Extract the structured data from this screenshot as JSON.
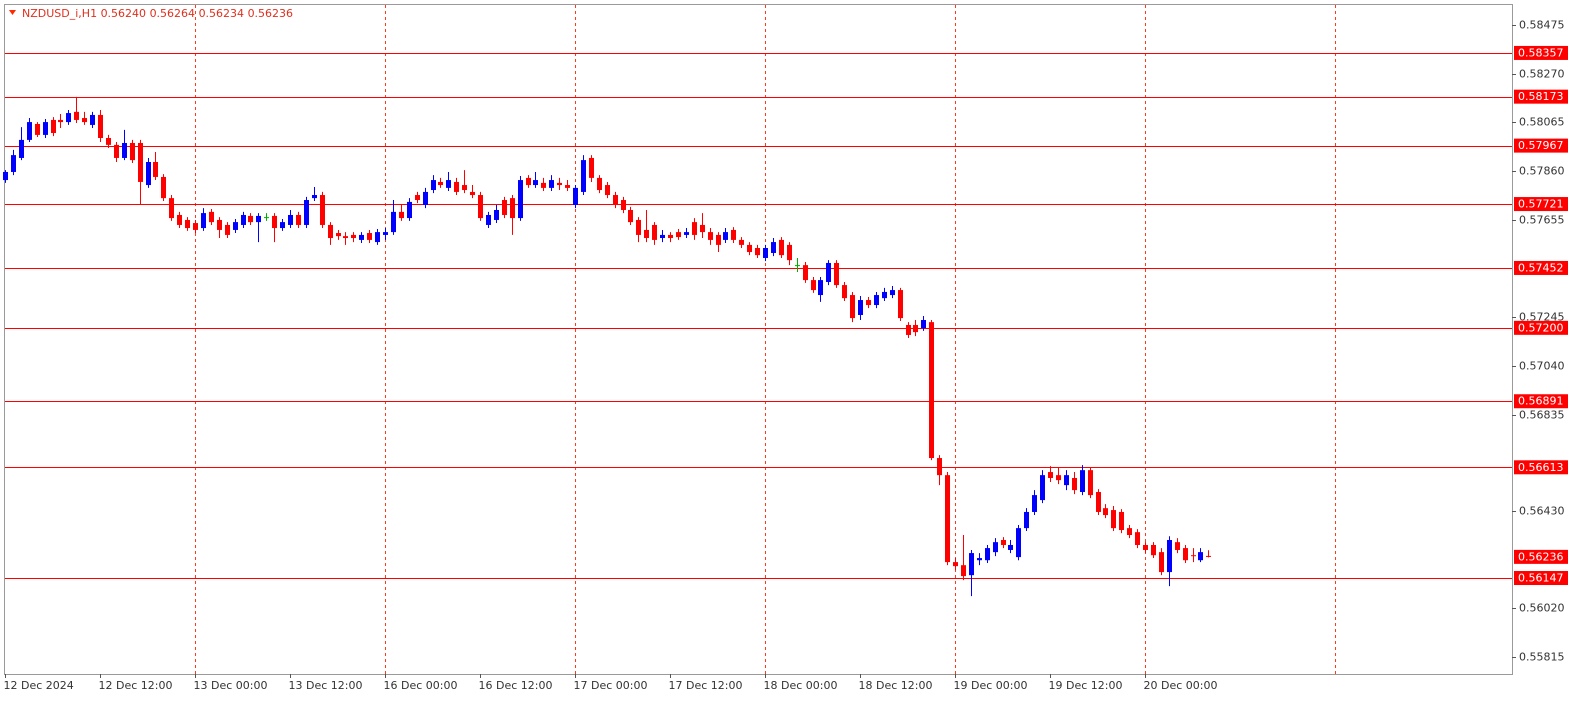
{
  "chart_data": {
    "type": "candlestick",
    "symbol": "NZDUSD_i,H1",
    "ohlc_text": [
      "0.56240",
      "0.56264",
      "0.56234",
      "0.56236"
    ],
    "up_color": "#0000ff",
    "down_color": "#ff0000",
    "doji_color": "#00b000",
    "grid_color": "#ff3b1f",
    "level_color": "#ff0000",
    "ylim": [
      0.55743,
      0.58563
    ],
    "yticks": [
      0.58475,
      {
        "value": 0.5827,
        "label": "0.58270"
      },
      0.58065,
      {
        "value": 0.5786,
        "label": "0.57860"
      },
      0.57655,
      0.57245,
      {
        "value": 0.5704,
        "label": "0.57040"
      },
      0.56835,
      {
        "value": 0.5643,
        "label": "0.56430"
      },
      {
        "value": 0.5602,
        "label": "0.56020"
      },
      0.55815
    ],
    "levels": [
      {
        "value": 0.58357,
        "label": "0.58357"
      },
      {
        "value": 0.58173,
        "label": "0.58173"
      },
      {
        "value": 0.57967,
        "label": "0.57967"
      },
      {
        "value": 0.57721,
        "label": "0.57721"
      },
      {
        "value": 0.57452,
        "label": "0.57452"
      },
      {
        "value": 0.572,
        "label": "0.57200"
      },
      {
        "value": 0.56891,
        "label": "0.56891"
      },
      {
        "value": 0.56613,
        "label": "0.56613"
      },
      {
        "value": 0.56147,
        "label": "0.56147"
      }
    ],
    "current_price": {
      "value": 0.56236,
      "label": "0.56236"
    },
    "xlim": [
      -0.13,
      190.35
    ],
    "xticks": [
      {
        "value": 0,
        "label": "12 Dec 2024"
      },
      {
        "value": 12,
        "label": "12 Dec 12:00"
      },
      {
        "value": 24,
        "label": "13 Dec 00:00"
      },
      {
        "value": 36,
        "label": "13 Dec 12:00"
      },
      {
        "value": 48,
        "label": "16 Dec 00:00"
      },
      {
        "value": 60,
        "label": "16 Dec 12:00"
      },
      {
        "value": 72,
        "label": "17 Dec 00:00"
      },
      {
        "value": 84,
        "label": "17 Dec 12:00"
      },
      {
        "value": 96,
        "label": "18 Dec 00:00"
      },
      {
        "value": 108,
        "label": "18 Dec 12:00"
      },
      {
        "value": 120,
        "label": "19 Dec 00:00"
      },
      {
        "value": 132,
        "label": "19 Dec 12:00"
      },
      {
        "value": 144,
        "label": "20 Dec 00:00"
      }
    ],
    "xgrid": [
      24,
      48,
      72,
      96,
      120,
      144,
      168
    ],
    "open": [
      0.57822,
      0.57856,
      0.57915,
      0.57991,
      0.58058,
      0.58012,
      0.58075,
      0.58075,
      0.58066,
      0.58109,
      0.58083,
      0.58054,
      0.58096,
      0.57999,
      0.5797,
      0.57915,
      0.57978,
      0.57978,
      0.57801,
      0.57898,
      0.57835,
      0.57746,
      0.57675,
      0.57654,
      0.57641,
      0.5762,
      0.57688,
      0.57654,
      0.57633,
      0.57612,
      0.57633,
      0.57671,
      0.57645,
      0.57666,
      0.57671,
      0.5762,
      0.57633,
      0.57675,
      0.57633,
      0.57746,
      0.57759,
      0.57633,
      0.57599,
      0.57586,
      0.57591,
      0.5757,
      0.57599,
      0.57561,
      0.57591,
      0.57603,
      0.57688,
      0.57662,
      0.57759,
      0.57717,
      0.5778,
      0.57814,
      0.57789,
      0.57814,
      0.57801,
      0.57772,
      0.57759,
      0.57633,
      0.57654,
      0.57738,
      0.57746,
      0.57662,
      0.57831,
      0.57801,
      0.5781,
      0.57789,
      0.5781,
      0.57801,
      0.57717,
      0.57772,
      0.57915,
      0.57831,
      0.57801,
      0.57759,
      0.57738,
      0.57696,
      0.57654,
      0.57612,
      0.57633,
      0.57578,
      0.57591,
      0.57603,
      0.57591,
      0.57645,
      0.57633,
      0.57603,
      0.57591,
      0.5757,
      0.57612,
      0.5757,
      0.57549,
      0.57536,
      0.57494,
      0.57515,
      0.5757,
      0.57549,
      0.57464,
      0.57464,
      0.57401,
      0.57338,
      0.57393,
      0.57473,
      0.5738,
      0.57338,
      0.57254,
      0.57317,
      0.57296,
      0.57325,
      0.57338,
      0.57359,
      0.57212,
      0.57212,
      0.57199,
      0.57224,
      0.56652,
      0.5658,
      0.56214,
      0.56201,
      0.56159,
      0.56222,
      0.56222,
      0.56256,
      0.56307,
      0.56265,
      0.56235,
      0.56357,
      0.56425,
      0.56475,
      0.56593,
      0.5658,
      0.56538,
      0.56568,
      0.56509,
      0.56601,
      0.56509,
      0.56441,
      0.56433,
      0.56425,
      0.56357,
      0.5634,
      0.56286,
      0.56286,
      0.56256,
      0.56172,
      0.56298,
      0.56273,
      0.56243,
      0.56222,
      0.5624
    ],
    "high": [
      0.57864,
      0.57949,
      0.58045,
      0.58083,
      0.58066,
      0.58079,
      0.58087,
      0.581,
      0.58117,
      0.58172,
      0.58109,
      0.58109,
      0.58117,
      0.58012,
      0.57982,
      0.58033,
      0.57991,
      0.57991,
      0.57915,
      0.5794,
      0.57847,
      0.57759,
      0.57688,
      0.57666,
      0.57654,
      0.57704,
      0.577,
      0.57666,
      0.57645,
      0.57658,
      0.57688,
      0.57683,
      0.57683,
      0.57683,
      0.57683,
      0.57658,
      0.57696,
      0.57688,
      0.57751,
      0.57793,
      0.57772,
      0.57645,
      0.57612,
      0.57603,
      0.57603,
      0.57603,
      0.57612,
      0.57616,
      0.5762,
      0.57738,
      0.57717,
      0.57746,
      0.57772,
      0.57789,
      0.57843,
      0.57831,
      0.57856,
      0.57831,
      0.57864,
      0.57801,
      0.57772,
      0.57688,
      0.57717,
      0.57751,
      0.57759,
      0.57839,
      0.57843,
      0.57856,
      0.57831,
      0.57843,
      0.57831,
      0.57822,
      0.57801,
      0.57927,
      0.57927,
      0.57843,
      0.57814,
      0.57772,
      0.57751,
      0.57709,
      0.57666,
      0.57696,
      0.57645,
      0.57612,
      0.57603,
      0.57616,
      0.5762,
      0.57662,
      0.57683,
      0.5762,
      0.57603,
      0.5762,
      0.57624,
      0.57582,
      0.57561,
      0.57549,
      0.57549,
      0.57578,
      0.57582,
      0.57561,
      0.57494,
      0.57477,
      0.57414,
      0.57414,
      0.57485,
      0.57485,
      0.57393,
      0.57351,
      0.57334,
      0.5733,
      0.57351,
      0.57368,
      0.57376,
      0.57368,
      0.57224,
      0.57233,
      0.5725,
      0.57233,
      0.56664,
      0.56593,
      0.56231,
      0.56328,
      0.56265,
      0.56252,
      0.56286,
      0.56315,
      0.56319,
      0.56307,
      0.5637,
      0.56441,
      0.56517,
      0.56601,
      0.56618,
      0.5661,
      0.56601,
      0.56593,
      0.56622,
      0.56614,
      0.56521,
      0.56458,
      0.5645,
      0.56437,
      0.5637,
      0.56353,
      0.56298,
      0.56298,
      0.56273,
      0.56323,
      0.56315,
      0.56286,
      0.56273,
      0.56273,
      0.56264
    ],
    "low": [
      0.5781,
      0.57843,
      0.57906,
      0.57982,
      0.58003,
      0.57999,
      0.58007,
      0.58041,
      0.58054,
      0.58062,
      0.58054,
      0.58041,
      0.57982,
      0.57957,
      0.57898,
      0.57906,
      0.57894,
      0.57717,
      0.57789,
      0.57822,
      0.57734,
      0.5765,
      0.5762,
      0.57608,
      0.57599,
      0.57608,
      0.57633,
      0.57578,
      0.57578,
      0.57599,
      0.5762,
      0.57633,
      0.57561,
      0.5765,
      0.57561,
      0.57608,
      0.5762,
      0.5762,
      0.5762,
      0.57734,
      0.5762,
      0.57549,
      0.5757,
      0.57549,
      0.57561,
      0.57557,
      0.57557,
      0.57549,
      0.5757,
      0.57591,
      0.5765,
      0.5765,
      0.57725,
      0.57704,
      0.57767,
      0.57789,
      0.57776,
      0.57759,
      0.57767,
      0.57746,
      0.5765,
      0.5762,
      0.57641,
      0.57662,
      0.57591,
      0.5765,
      0.57789,
      0.57789,
      0.57776,
      0.57776,
      0.5778,
      0.57776,
      0.57704,
      0.57759,
      0.57814,
      0.57767,
      0.57746,
      0.57704,
      0.57683,
      0.57633,
      0.57561,
      0.57561,
      0.57549,
      0.57561,
      0.57561,
      0.5757,
      0.57578,
      0.5757,
      0.57578,
      0.57549,
      0.57519,
      0.57557,
      0.57557,
      0.57536,
      0.57506,
      0.57494,
      0.57481,
      0.57502,
      0.57494,
      0.57464,
      0.57435,
      0.57389,
      0.57347,
      0.57309,
      0.5738,
      0.57368,
      0.57313,
      0.57224,
      0.57233,
      0.57283,
      0.57283,
      0.57313,
      0.57325,
      0.57229,
      0.57157,
      0.57165,
      0.57187,
      0.56643,
      0.56538,
      0.56201,
      0.5618,
      0.56138,
      0.56071,
      0.56201,
      0.5621,
      0.56239,
      0.56273,
      0.56252,
      0.56222,
      0.56345,
      0.56412,
      0.56462,
      0.56551,
      0.56542,
      0.56517,
      0.565,
      0.56496,
      0.56483,
      0.56412,
      0.56399,
      0.56345,
      0.56336,
      0.56315,
      0.56273,
      0.56252,
      0.56231,
      0.56159,
      0.56113,
      0.56252,
      0.5621,
      0.56214,
      0.56214,
      0.56234
    ],
    "close": [
      0.57856,
      0.57927,
      0.57991,
      0.58066,
      0.58012,
      0.58066,
      0.5802,
      0.58066,
      0.58104,
      0.58075,
      0.58066,
      0.58096,
      0.57999,
      0.5797,
      0.57915,
      0.57978,
      0.57906,
      0.57814,
      0.57898,
      0.57835,
      0.57746,
      0.57662,
      0.57633,
      0.5762,
      0.57612,
      0.57683,
      0.57645,
      0.57612,
      0.57591,
      0.57645,
      0.57675,
      0.57645,
      0.57671,
      0.57666,
      0.5762,
      0.57645,
      0.57675,
      0.57633,
      0.57738,
      0.57759,
      0.57633,
      0.57578,
      0.57586,
      0.57578,
      0.57578,
      0.57591,
      0.5757,
      0.57603,
      0.57603,
      0.57688,
      0.57662,
      0.5773,
      0.57738,
      0.57772,
      0.57822,
      0.57801,
      0.57822,
      0.57772,
      0.5778,
      0.57759,
      0.57662,
      0.57675,
      0.57696,
      0.57675,
      0.57662,
      0.57822,
      0.57801,
      0.57822,
      0.57789,
      0.57822,
      0.57801,
      0.57789,
      0.57789,
      0.57906,
      0.57831,
      0.5778,
      0.57759,
      0.57717,
      0.57696,
      0.57645,
      0.57591,
      0.57578,
      0.5757,
      0.57591,
      0.57578,
      0.57582,
      0.57603,
      0.57591,
      0.57603,
      0.5757,
      0.57549,
      0.57603,
      0.5757,
      0.57549,
      0.57519,
      0.57506,
      0.57536,
      0.57561,
      0.57506,
      0.57485,
      0.57464,
      0.57401,
      0.57359,
      0.57401,
      0.57473,
      0.5738,
      0.57325,
      0.57241,
      0.57317,
      0.57296,
      0.57338,
      0.57351,
      0.57359,
      0.57241,
      0.5717,
      0.57182,
      0.57233,
      0.56652,
      0.5658,
      0.56214,
      0.56197,
      0.56155,
      0.56252,
      0.56231,
      0.56273,
      0.56298,
      0.56286,
      0.56286,
      0.56357,
      0.56425,
      0.56496,
      0.5658,
      0.56568,
      0.56559,
      0.5658,
      0.56517,
      0.56601,
      0.56496,
      0.56425,
      0.56412,
      0.56357,
      0.56349,
      0.56328,
      0.56286,
      0.56265,
      0.56243,
      0.56172,
      0.56307,
      0.56265,
      0.56222,
      0.56239,
      0.56256,
      0.56236
    ]
  }
}
